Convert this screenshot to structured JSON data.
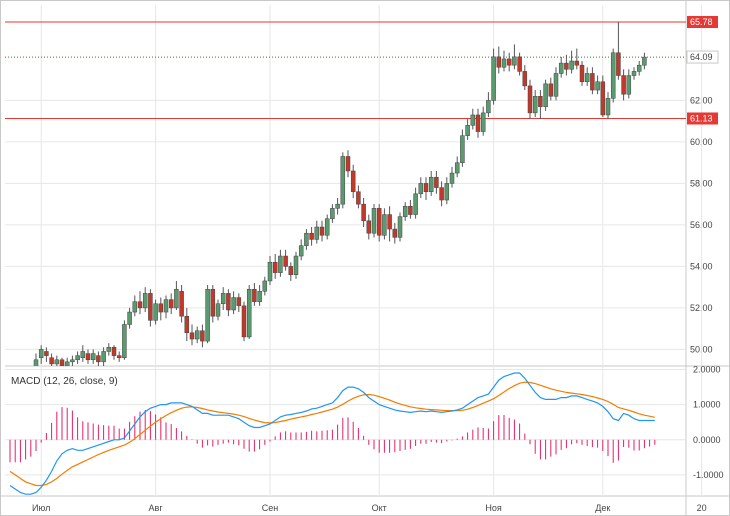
{
  "chart_data": {
    "type": "candlestick",
    "grid": true,
    "colors": {
      "up": "#5a9a6e",
      "down": "#c0392b",
      "level_line": "#e53935",
      "last_price_line": "#2e7d32",
      "macd_line": "#2196f3",
      "signal_line": "#f57c00",
      "histogram": "#e91e63",
      "grid": "#e6e6e6",
      "frame": "#c8c8c8"
    },
    "price_axis": {
      "ylim": [
        49.2,
        66.6
      ],
      "ticks": [
        "50.00",
        "52.00",
        "54.00",
        "56.00",
        "58.00",
        "60.00",
        "62.00"
      ]
    },
    "price_levels": [
      {
        "label": "65.78",
        "value": 65.78,
        "kind": "resistance"
      },
      {
        "label": "61.13",
        "value": 61.13,
        "kind": "support"
      }
    ],
    "last_price": {
      "label": "64.09",
      "value": 64.09
    },
    "x_axis": {
      "labels": [
        {
          "text": "Июл",
          "index": 6
        },
        {
          "text": "Авг",
          "index": 28
        },
        {
          "text": "Сен",
          "index": 50
        },
        {
          "text": "Окт",
          "index": 71
        },
        {
          "text": "Ноя",
          "index": 93
        },
        {
          "text": "Дек",
          "index": 114
        },
        {
          "text": "20",
          "index": 133
        }
      ]
    },
    "candles": [
      [
        49.0,
        48.6,
        49.2,
        48.2
      ],
      [
        48.7,
        48.4,
        48.9,
        48.1
      ],
      [
        48.5,
        48.8,
        49.0,
        48.3
      ],
      [
        48.8,
        48.9,
        49.2,
        48.5
      ],
      [
        48.9,
        48.7,
        49.1,
        48.4
      ],
      [
        48.8,
        49.5,
        49.8,
        48.6
      ],
      [
        49.6,
        50.0,
        50.2,
        49.3
      ],
      [
        49.9,
        49.7,
        50.1,
        49.4
      ],
      [
        49.6,
        49.3,
        49.8,
        49.0
      ],
      [
        49.3,
        49.5,
        49.7,
        49.1
      ],
      [
        49.5,
        49.2,
        49.6,
        48.9
      ],
      [
        49.2,
        49.4,
        49.6,
        49.0
      ],
      [
        49.4,
        49.5,
        49.7,
        49.2
      ],
      [
        49.5,
        49.7,
        49.9,
        49.3
      ],
      [
        49.6,
        49.9,
        50.2,
        49.4
      ],
      [
        49.8,
        49.5,
        50.0,
        49.3
      ],
      [
        49.5,
        49.8,
        50.0,
        49.3
      ],
      [
        49.7,
        49.4,
        49.9,
        49.2
      ],
      [
        49.4,
        49.9,
        50.1,
        49.2
      ],
      [
        49.9,
        50.1,
        50.3,
        49.7
      ],
      [
        50.1,
        49.7,
        50.2,
        49.5
      ],
      [
        49.7,
        49.6,
        49.9,
        49.4
      ],
      [
        49.6,
        51.2,
        51.4,
        49.5
      ],
      [
        51.2,
        51.8,
        52.0,
        51.0
      ],
      [
        51.8,
        52.3,
        52.6,
        51.6
      ],
      [
        52.3,
        52.0,
        52.8,
        51.7
      ],
      [
        52.0,
        52.7,
        53.0,
        51.8
      ],
      [
        52.7,
        51.4,
        52.9,
        51.1
      ],
      [
        51.4,
        52.2,
        52.4,
        51.2
      ],
      [
        52.2,
        51.8,
        52.5,
        51.4
      ],
      [
        51.8,
        52.4,
        52.6,
        51.5
      ],
      [
        52.4,
        52.0,
        52.7,
        51.7
      ],
      [
        52.0,
        52.9,
        53.3,
        51.9
      ],
      [
        52.8,
        51.6,
        53.1,
        51.3
      ],
      [
        51.6,
        50.8,
        52.0,
        50.4
      ],
      [
        50.8,
        50.5,
        51.2,
        50.2
      ],
      [
        50.5,
        50.9,
        51.1,
        50.3
      ],
      [
        50.9,
        50.4,
        51.2,
        50.1
      ],
      [
        50.4,
        52.9,
        53.1,
        50.3
      ],
      [
        52.9,
        51.6,
        53.1,
        51.3
      ],
      [
        51.6,
        52.2,
        52.4,
        51.4
      ],
      [
        52.2,
        52.7,
        53.0,
        51.9
      ],
      [
        52.7,
        51.9,
        52.9,
        51.6
      ],
      [
        51.9,
        52.5,
        52.8,
        51.7
      ],
      [
        52.5,
        52.1,
        52.7,
        51.8
      ],
      [
        52.1,
        50.6,
        52.3,
        50.4
      ],
      [
        50.6,
        52.9,
        53.1,
        50.5
      ],
      [
        52.9,
        52.3,
        53.2,
        52.1
      ],
      [
        52.3,
        52.8,
        53.1,
        52.1
      ],
      [
        52.8,
        53.3,
        53.5,
        52.6
      ],
      [
        53.3,
        54.2,
        54.5,
        53.1
      ],
      [
        54.2,
        53.7,
        54.6,
        53.4
      ],
      [
        53.7,
        54.5,
        54.8,
        53.5
      ],
      [
        54.5,
        54.0,
        54.8,
        53.8
      ],
      [
        54.0,
        53.6,
        54.2,
        53.3
      ],
      [
        53.6,
        54.5,
        54.7,
        53.4
      ],
      [
        54.5,
        55.0,
        55.3,
        54.3
      ],
      [
        55.0,
        55.6,
        55.8,
        54.8
      ],
      [
        55.6,
        55.3,
        55.9,
        55.0
      ],
      [
        55.3,
        55.9,
        56.2,
        55.1
      ],
      [
        55.9,
        55.5,
        56.2,
        55.2
      ],
      [
        55.5,
        56.3,
        56.5,
        55.3
      ],
      [
        56.3,
        56.8,
        57.0,
        56.1
      ],
      [
        56.8,
        57.0,
        57.3,
        56.5
      ],
      [
        57.0,
        59.3,
        59.5,
        56.8
      ],
      [
        59.3,
        58.6,
        59.6,
        58.3
      ],
      [
        58.6,
        57.6,
        58.9,
        57.3
      ],
      [
        57.6,
        57.0,
        57.9,
        56.8
      ],
      [
        57.0,
        56.2,
        57.3,
        55.9
      ],
      [
        56.2,
        55.6,
        56.5,
        55.3
      ],
      [
        55.6,
        56.8,
        57.0,
        55.4
      ],
      [
        56.8,
        55.5,
        57.0,
        55.2
      ],
      [
        55.5,
        56.5,
        56.8,
        55.3
      ],
      [
        56.5,
        55.8,
        56.9,
        55.2
      ],
      [
        55.8,
        55.4,
        56.1,
        55.1
      ],
      [
        55.4,
        56.4,
        56.6,
        55.2
      ],
      [
        56.4,
        56.9,
        57.1,
        56.2
      ],
      [
        56.9,
        56.5,
        57.2,
        56.3
      ],
      [
        56.5,
        57.5,
        57.8,
        56.3
      ],
      [
        57.5,
        58.0,
        58.3,
        57.3
      ],
      [
        58.0,
        57.6,
        58.3,
        57.2
      ],
      [
        57.6,
        58.3,
        58.6,
        57.4
      ],
      [
        58.3,
        57.8,
        58.6,
        57.5
      ],
      [
        57.8,
        57.2,
        58.1,
        56.9
      ],
      [
        57.2,
        58.0,
        58.3,
        57.0
      ],
      [
        58.0,
        58.5,
        58.8,
        57.8
      ],
      [
        58.5,
        59.0,
        59.3,
        58.3
      ],
      [
        59.0,
        60.3,
        60.6,
        58.8
      ],
      [
        60.3,
        60.8,
        61.1,
        60.1
      ],
      [
        60.8,
        61.3,
        61.6,
        60.6
      ],
      [
        61.3,
        60.5,
        61.6,
        60.2
      ],
      [
        60.5,
        61.4,
        61.7,
        60.3
      ],
      [
        61.4,
        62.0,
        62.4,
        61.2
      ],
      [
        62.0,
        64.1,
        64.5,
        61.8
      ],
      [
        64.1,
        63.6,
        64.6,
        63.3
      ],
      [
        63.6,
        64.0,
        64.4,
        63.4
      ],
      [
        64.0,
        63.7,
        64.3,
        63.4
      ],
      [
        63.7,
        64.1,
        64.7,
        63.5
      ],
      [
        64.1,
        63.4,
        64.3,
        63.2
      ],
      [
        63.4,
        62.7,
        63.7,
        62.5
      ],
      [
        62.7,
        61.4,
        63.0,
        61.1
      ],
      [
        61.4,
        62.2,
        62.5,
        61.2
      ],
      [
        62.2,
        61.7,
        62.5,
        61.1
      ],
      [
        61.7,
        62.8,
        63.0,
        61.5
      ],
      [
        62.8,
        62.2,
        63.1,
        62.0
      ],
      [
        62.2,
        63.3,
        63.6,
        62.0
      ],
      [
        63.3,
        63.8,
        64.1,
        63.1
      ],
      [
        63.8,
        63.5,
        64.2,
        63.2
      ],
      [
        63.5,
        63.9,
        64.4,
        63.3
      ],
      [
        63.9,
        63.7,
        64.5,
        63.5
      ],
      [
        63.7,
        62.9,
        63.9,
        62.7
      ],
      [
        62.9,
        63.3,
        63.6,
        62.7
      ],
      [
        63.3,
        62.5,
        63.6,
        62.3
      ],
      [
        62.5,
        62.9,
        63.2,
        62.3
      ],
      [
        62.9,
        61.3,
        63.2,
        61.2
      ],
      [
        61.3,
        62.1,
        62.4,
        61.1
      ],
      [
        62.1,
        64.3,
        64.5,
        61.9
      ],
      [
        64.3,
        63.2,
        65.8,
        63.0
      ],
      [
        63.2,
        62.3,
        63.5,
        62.0
      ],
      [
        62.3,
        63.2,
        63.5,
        62.1
      ],
      [
        63.2,
        63.4,
        63.6,
        63.0
      ],
      [
        63.4,
        63.7,
        63.9,
        63.2
      ],
      [
        63.7,
        64.09,
        64.3,
        63.5
      ]
    ],
    "indicator": {
      "title": "MACD (12, 26, close, 9)",
      "ylim": [
        -1.6,
        2.1
      ],
      "ticks": [
        "2.0000",
        "1.0000",
        "0.0000",
        "-1.0000"
      ],
      "macd": [
        -1.3,
        -1.4,
        -1.5,
        -1.55,
        -1.55,
        -1.5,
        -1.35,
        -1.15,
        -0.9,
        -0.6,
        -0.4,
        -0.3,
        -0.25,
        -0.3,
        -0.3,
        -0.25,
        -0.2,
        -0.15,
        -0.1,
        -0.05,
        0.0,
        0.0,
        0.05,
        0.25,
        0.45,
        0.65,
        0.8,
        0.9,
        0.95,
        1.0,
        1.0,
        1.05,
        1.05,
        1.05,
        1.0,
        0.95,
        0.85,
        0.75,
        0.75,
        0.7,
        0.7,
        0.7,
        0.7,
        0.65,
        0.6,
        0.5,
        0.4,
        0.35,
        0.35,
        0.4,
        0.45,
        0.55,
        0.65,
        0.7,
        0.72,
        0.75,
        0.78,
        0.82,
        0.88,
        0.9,
        0.95,
        1.0,
        1.05,
        1.2,
        1.4,
        1.5,
        1.5,
        1.45,
        1.35,
        1.2,
        1.1,
        1.0,
        0.95,
        0.9,
        0.85,
        0.82,
        0.8,
        0.78,
        0.8,
        0.82,
        0.8,
        0.82,
        0.8,
        0.78,
        0.8,
        0.82,
        0.85,
        0.9,
        1.0,
        1.1,
        1.2,
        1.25,
        1.3,
        1.5,
        1.7,
        1.8,
        1.85,
        1.9,
        1.9,
        1.75,
        1.55,
        1.35,
        1.2,
        1.15,
        1.15,
        1.15,
        1.2,
        1.2,
        1.25,
        1.25,
        1.2,
        1.15,
        1.1,
        1.05,
        0.95,
        0.8,
        0.6,
        0.55,
        0.75,
        0.7,
        0.6,
        0.55,
        0.55,
        0.55,
        0.55
      ],
      "signal": [
        -0.9,
        -1.0,
        -1.1,
        -1.2,
        -1.25,
        -1.3,
        -1.3,
        -1.27,
        -1.2,
        -1.1,
        -0.98,
        -0.87,
        -0.77,
        -0.7,
        -0.63,
        -0.56,
        -0.49,
        -0.42,
        -0.36,
        -0.3,
        -0.25,
        -0.2,
        -0.15,
        -0.07,
        0.03,
        0.15,
        0.27,
        0.39,
        0.5,
        0.6,
        0.69,
        0.77,
        0.84,
        0.9,
        0.93,
        0.94,
        0.92,
        0.89,
        0.85,
        0.82,
        0.79,
        0.77,
        0.75,
        0.73,
        0.7,
        0.66,
        0.61,
        0.56,
        0.52,
        0.49,
        0.48,
        0.49,
        0.52,
        0.55,
        0.59,
        0.62,
        0.65,
        0.68,
        0.72,
        0.75,
        0.79,
        0.83,
        0.87,
        0.93,
        1.01,
        1.1,
        1.18,
        1.24,
        1.28,
        1.29,
        1.27,
        1.23,
        1.18,
        1.13,
        1.07,
        1.02,
        0.98,
        0.94,
        0.91,
        0.89,
        0.87,
        0.86,
        0.85,
        0.84,
        0.83,
        0.83,
        0.83,
        0.84,
        0.87,
        0.92,
        0.98,
        1.04,
        1.1,
        1.17,
        1.26,
        1.36,
        1.46,
        1.54,
        1.61,
        1.64,
        1.63,
        1.6,
        1.55,
        1.5,
        1.45,
        1.41,
        1.38,
        1.35,
        1.33,
        1.31,
        1.29,
        1.26,
        1.23,
        1.19,
        1.15,
        1.09,
        1.01,
        0.92,
        0.88,
        0.84,
        0.79,
        0.74,
        0.7,
        0.67,
        0.64
      ]
    }
  }
}
